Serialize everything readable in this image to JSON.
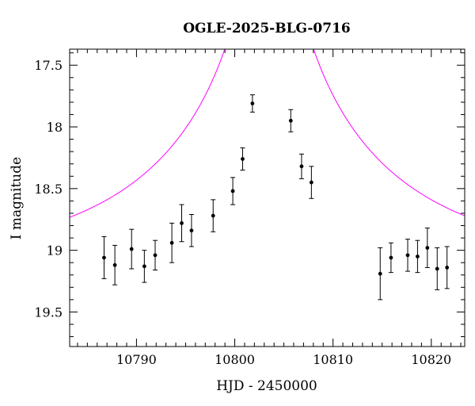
{
  "chart_data": {
    "type": "scatter",
    "title": "OGLE-2025-BLG-0716",
    "xlabel": "HJD - 2450000",
    "ylabel": "I magnitude",
    "xlim": [
      10783.2,
      10823.4
    ],
    "ylim": [
      19.78,
      17.37
    ],
    "y_inverted": true,
    "x_ticks": [
      10790,
      10800,
      10810,
      10820
    ],
    "x_tick_labels": [
      "10790",
      "10800",
      "10810",
      "10820"
    ],
    "y_ticks": [
      17.5,
      18,
      18.5,
      19,
      19.5
    ],
    "y_tick_labels": [
      "17.5",
      "18",
      "18.5",
      "19",
      "19.5"
    ],
    "x_minor_step": 1,
    "y_minor_step": 0.1,
    "grid": false,
    "series": [
      {
        "type": "errorbar",
        "color": "#000000",
        "points": [
          {
            "x": 10786.7,
            "y": 19.06,
            "err": 0.17
          },
          {
            "x": 10787.8,
            "y": 19.12,
            "err": 0.16
          },
          {
            "x": 10789.5,
            "y": 18.99,
            "err": 0.16
          },
          {
            "x": 10790.8,
            "y": 19.13,
            "err": 0.13
          },
          {
            "x": 10791.9,
            "y": 19.04,
            "err": 0.12
          },
          {
            "x": 10793.6,
            "y": 18.94,
            "err": 0.16
          },
          {
            "x": 10794.6,
            "y": 18.78,
            "err": 0.15
          },
          {
            "x": 10795.6,
            "y": 18.84,
            "err": 0.13
          },
          {
            "x": 10797.8,
            "y": 18.72,
            "err": 0.13
          },
          {
            "x": 10799.8,
            "y": 18.52,
            "err": 0.11
          },
          {
            "x": 10800.8,
            "y": 18.26,
            "err": 0.09
          },
          {
            "x": 10801.8,
            "y": 17.81,
            "err": 0.07
          },
          {
            "x": 10805.7,
            "y": 17.95,
            "err": 0.09
          },
          {
            "x": 10806.8,
            "y": 18.32,
            "err": 0.1
          },
          {
            "x": 10807.8,
            "y": 18.45,
            "err": 0.13
          },
          {
            "x": 10814.8,
            "y": 19.19,
            "err": 0.21
          },
          {
            "x": 10815.9,
            "y": 19.06,
            "err": 0.12
          },
          {
            "x": 10817.6,
            "y": 19.04,
            "err": 0.13
          },
          {
            "x": 10818.6,
            "y": 19.05,
            "err": 0.13
          },
          {
            "x": 10819.6,
            "y": 18.98,
            "err": 0.16
          },
          {
            "x": 10820.6,
            "y": 19.15,
            "err": 0.17
          },
          {
            "x": 10821.6,
            "y": 19.14,
            "err": 0.17
          }
        ]
      },
      {
        "type": "model",
        "color": "#ff00ff",
        "model": {
          "t0": 10803.5,
          "tE": 22,
          "u0": 0.02,
          "baseline_mag": 19.1
        }
      }
    ]
  }
}
